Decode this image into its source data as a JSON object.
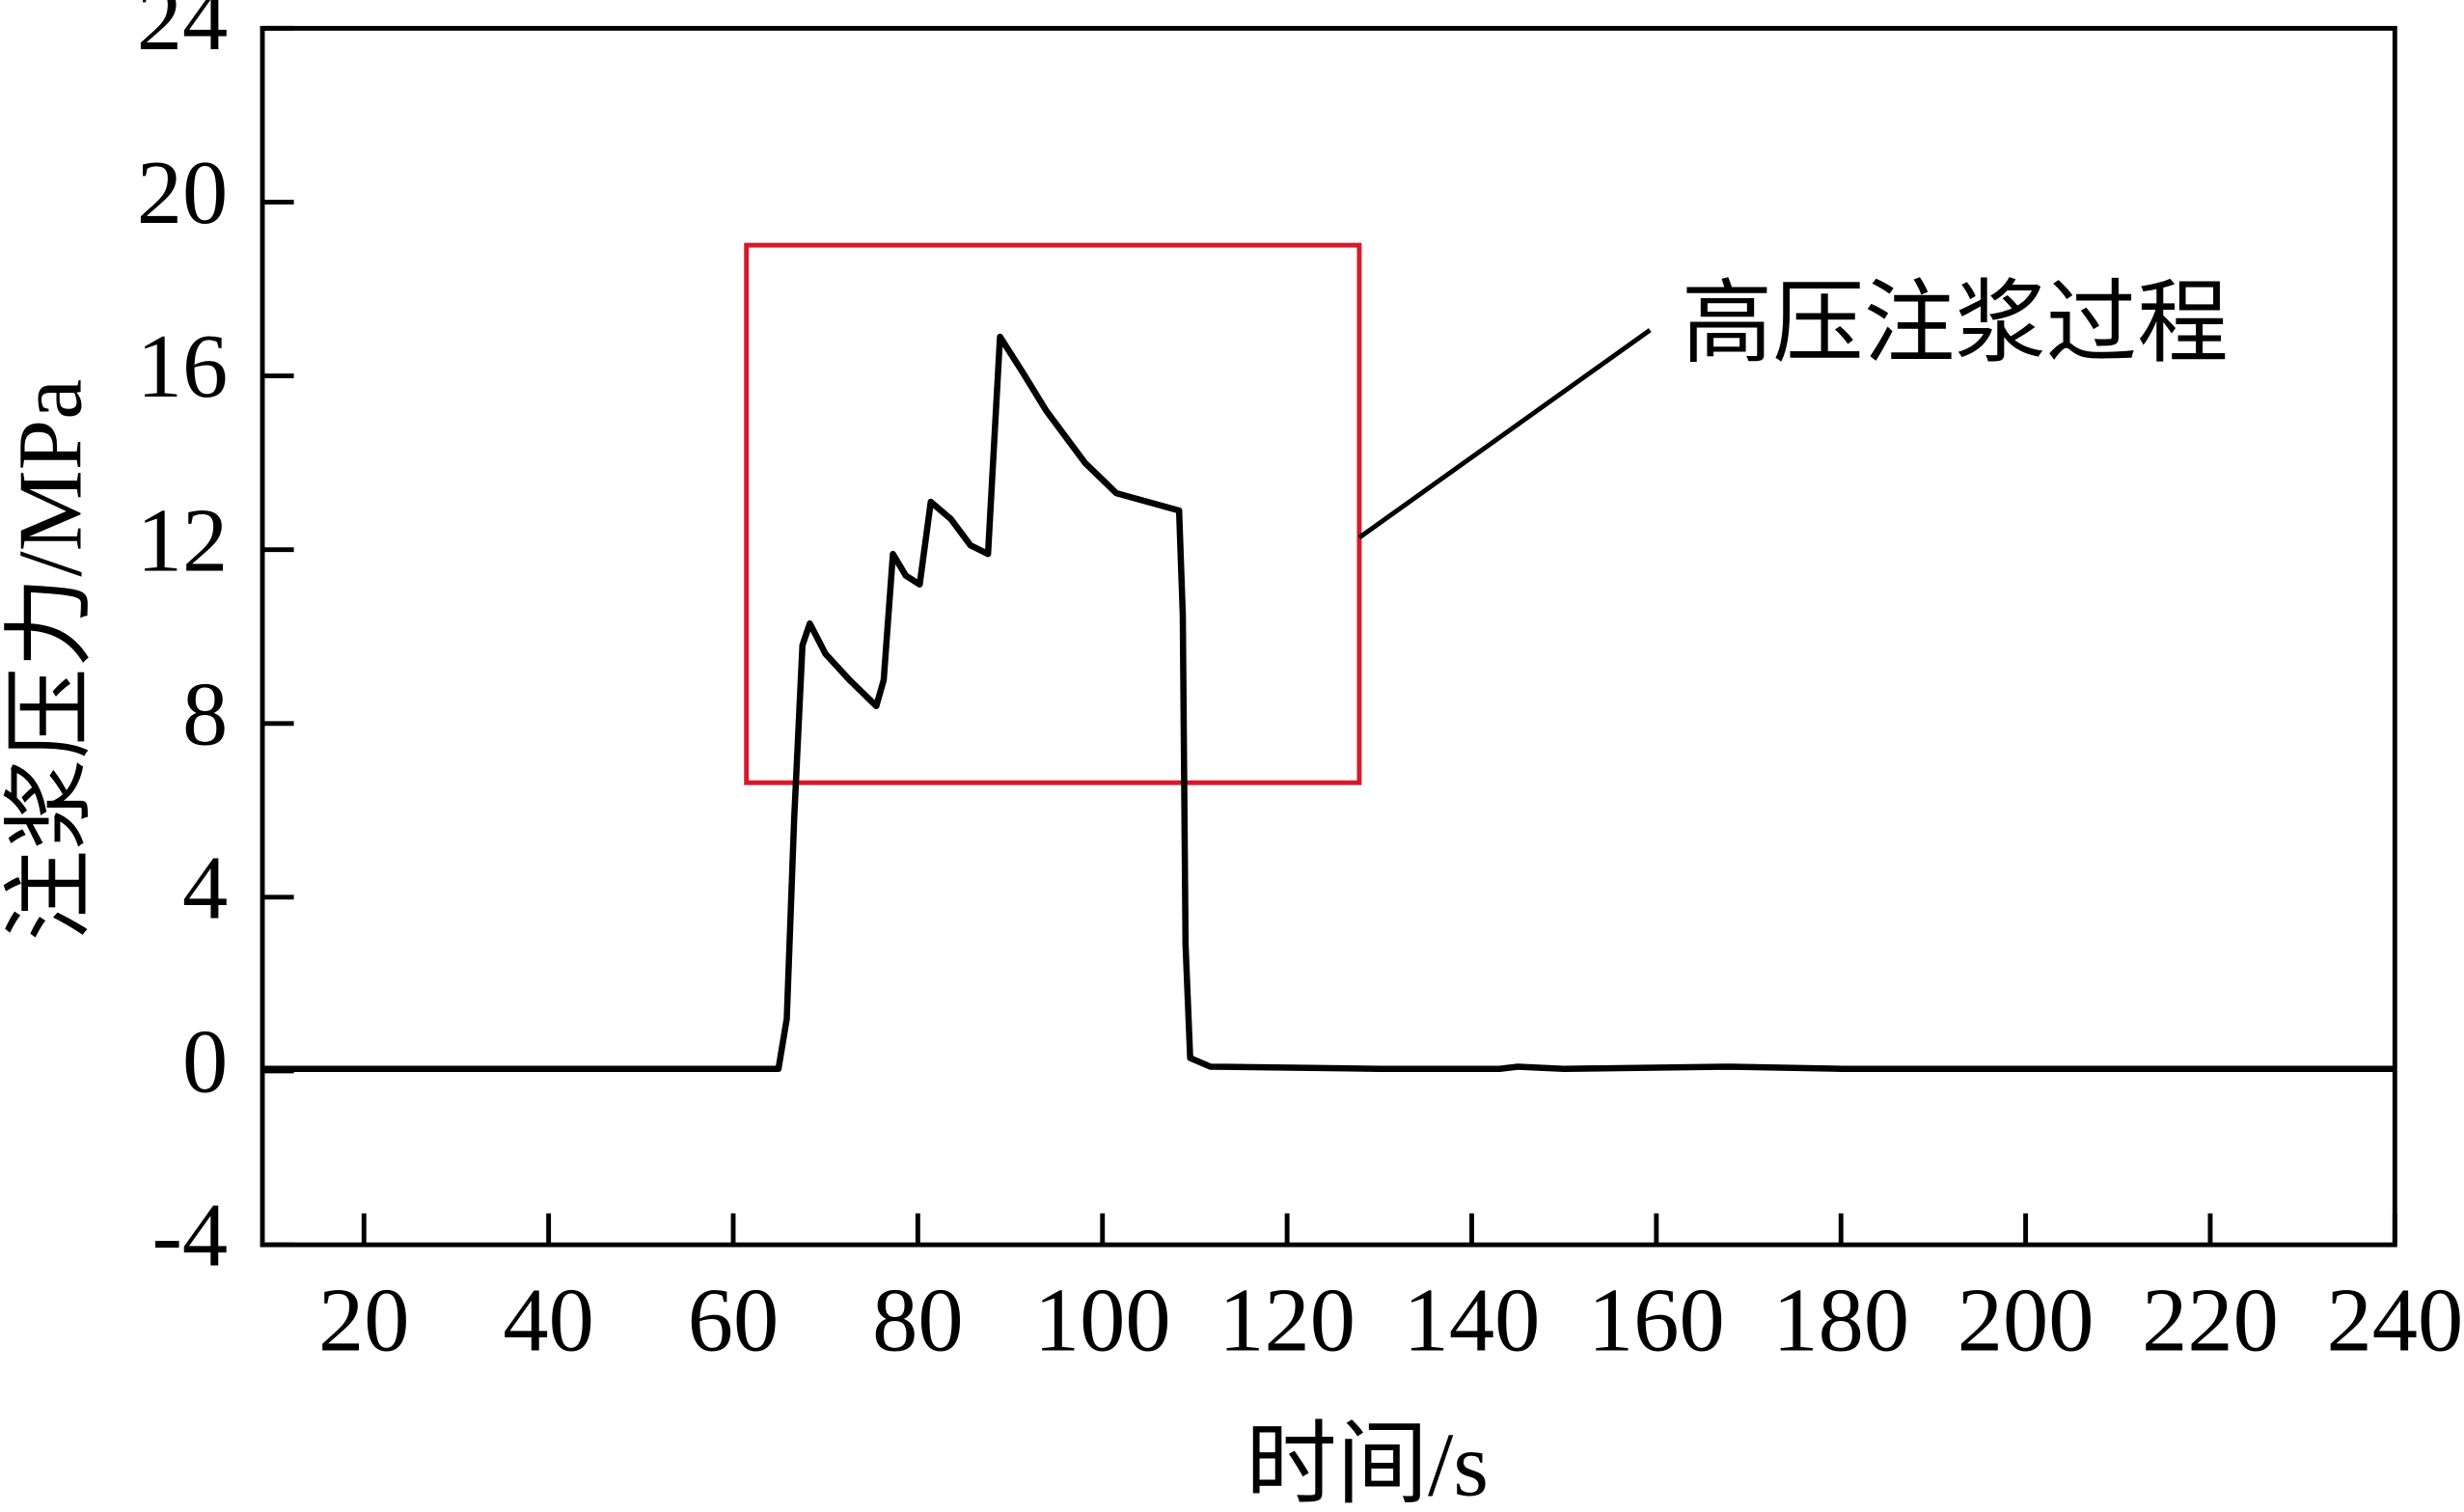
{
  "chart_data": {
    "type": "line",
    "xlabel": "时间/s",
    "ylabel": "注浆压力/MPa",
    "annotation": "高压注浆过程",
    "x": [
      9,
      30,
      50,
      64.9,
      65.8,
      66.6,
      67.5,
      68.3,
      70,
      72.6,
      75.5,
      76.3,
      77.3,
      78.7,
      80.2,
      81.4,
      83.6,
      85.7,
      87.6,
      88.9,
      91.3,
      93.9,
      98.1,
      101.5,
      106.6,
      108.3,
      108.7,
      109.0,
      109.5,
      111.7,
      130,
      143,
      145,
      150,
      168,
      180,
      200,
      220,
      240
    ],
    "values": [
      0.05,
      0.05,
      0.05,
      0.05,
      1.2,
      5.8,
      9.8,
      10.3,
      9.6,
      9.0,
      8.4,
      9.0,
      11.9,
      11.4,
      11.2,
      13.1,
      12.7,
      12.1,
      11.9,
      16.9,
      16.1,
      15.2,
      14.0,
      13.3,
      13.0,
      12.9,
      10.5,
      2.9,
      0.3,
      0.1,
      0.05,
      0.05,
      0.1,
      0.05,
      0.1,
      0.05,
      0.05,
      0.05,
      0.05
    ],
    "color": "#000000",
    "xlim": [
      9,
      240
    ],
    "ylim": [
      -4,
      24
    ],
    "xticks": [
      20,
      40,
      60,
      80,
      100,
      120,
      140,
      160,
      180,
      200,
      220,
      240
    ],
    "yticks": [
      -4,
      0,
      4,
      8,
      12,
      16,
      20,
      24
    ]
  }
}
